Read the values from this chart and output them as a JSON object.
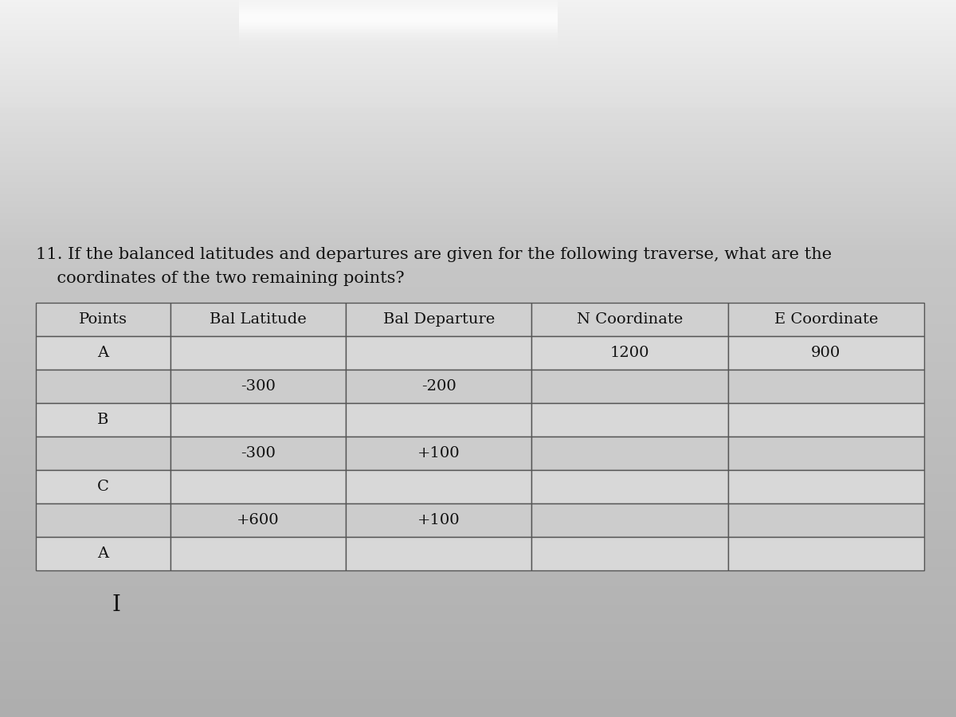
{
  "question_text_line1": "11. If the balanced latitudes and departures are given for the following traverse, what are the",
  "question_text_line2": "    coordinates of the two remaining points?",
  "bg_top_color": "#e8e8e8",
  "bg_mid_color": "#c8c8c8",
  "bg_bot_color": "#b8b8b8",
  "table_bg_color": "#e0e0e0",
  "header_bg_color": "#d0d0d0",
  "col_headers": [
    "Points",
    "Bal Latitude",
    "Bal Departure",
    "N Coordinate",
    "E Coordinate"
  ],
  "rows": [
    [
      "A",
      "",
      "",
      "1200",
      "900"
    ],
    [
      "",
      "-300",
      "-200",
      "",
      ""
    ],
    [
      "B",
      "",
      "",
      "",
      ""
    ],
    [
      "",
      "-300",
      "+100",
      "",
      ""
    ],
    [
      "C",
      "",
      "",
      "",
      ""
    ],
    [
      "",
      "+600",
      "+100",
      "",
      ""
    ],
    [
      "A",
      "",
      "",
      "",
      ""
    ]
  ],
  "font_size": 14,
  "header_font_size": 14,
  "question_font_size": 15,
  "text_color": "#111111",
  "table_border_color": "#555555",
  "cursor_text": "I",
  "stripe_top_color": "#d8d8d8",
  "stripe_bot_color": "#b0b0b0",
  "header_stripe_color": "#c0c0c0"
}
